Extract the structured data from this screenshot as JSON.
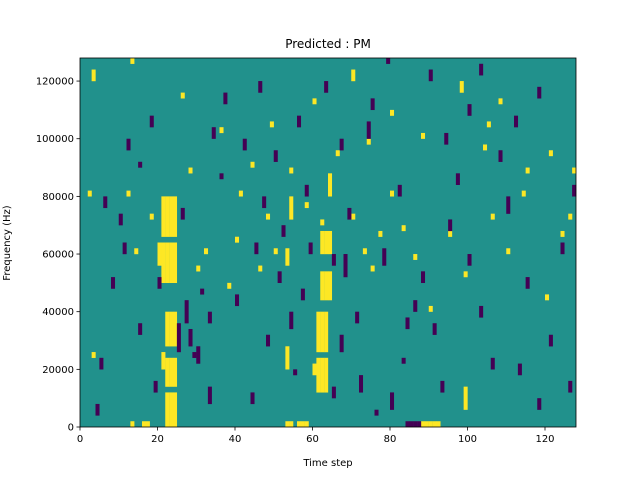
{
  "chart_data": {
    "type": "heatmap",
    "title": "Predicted : PM",
    "xlabel": "Time step",
    "ylabel": "Frequency (Hz)",
    "xlim": [
      0,
      128
    ],
    "ylim": [
      0,
      128000
    ],
    "x_ticks": [
      0,
      20,
      40,
      60,
      80,
      100,
      120
    ],
    "y_ticks": [
      0,
      20000,
      40000,
      60000,
      80000,
      100000,
      120000
    ],
    "x_tick_labels": [
      "0",
      "20",
      "40",
      "60",
      "80",
      "100",
      "120"
    ],
    "y_tick_labels": [
      "0",
      "20000",
      "40000",
      "60000",
      "80000",
      "100000",
      "120000"
    ],
    "grid": false,
    "n_time_steps": 128,
    "n_freq_bins": 64,
    "bin_hz": 2000,
    "colors": {
      "background": "#21918c",
      "low": "#440154",
      "high": "#fde725"
    },
    "background_value": 0,
    "value_levels": {
      "low": -1,
      "background": 0,
      "high": 1
    },
    "high_cells": [
      [
        22,
        0,
        6
      ],
      [
        23,
        0,
        6
      ],
      [
        24,
        0,
        6
      ],
      [
        16,
        0,
        1
      ],
      [
        17,
        0,
        1
      ],
      [
        13,
        0,
        1
      ],
      [
        22,
        7,
        12
      ],
      [
        23,
        7,
        12
      ],
      [
        24,
        7,
        12
      ],
      [
        21,
        10,
        13
      ],
      [
        22,
        14,
        20
      ],
      [
        23,
        14,
        20
      ],
      [
        24,
        14,
        20
      ],
      [
        21,
        25,
        32
      ],
      [
        22,
        25,
        32
      ],
      [
        23,
        25,
        32
      ],
      [
        24,
        25,
        32
      ],
      [
        20,
        28,
        32
      ],
      [
        21,
        33,
        40
      ],
      [
        22,
        33,
        40
      ],
      [
        23,
        33,
        40
      ],
      [
        24,
        33,
        40
      ],
      [
        61,
        6,
        12
      ],
      [
        62,
        6,
        12
      ],
      [
        63,
        6,
        12
      ],
      [
        60,
        9,
        11
      ],
      [
        61,
        13,
        20
      ],
      [
        62,
        13,
        20
      ],
      [
        63,
        13,
        20
      ],
      [
        62,
        22,
        27
      ],
      [
        63,
        22,
        27
      ],
      [
        64,
        22,
        27
      ],
      [
        62,
        30,
        34
      ],
      [
        63,
        30,
        34
      ],
      [
        64,
        30,
        34
      ],
      [
        62,
        35,
        36
      ],
      [
        53,
        0,
        1
      ],
      [
        54,
        0,
        1
      ],
      [
        56,
        0,
        1
      ],
      [
        57,
        0,
        1
      ],
      [
        58,
        0,
        1
      ],
      [
        88,
        0,
        1
      ],
      [
        89,
        0,
        1
      ],
      [
        90,
        0,
        1
      ],
      [
        91,
        0,
        1
      ],
      [
        92,
        0,
        1
      ],
      [
        53,
        10,
        14
      ],
      [
        53,
        28,
        31
      ],
      [
        54,
        36,
        40
      ],
      [
        64,
        40,
        44
      ],
      [
        2,
        40,
        41
      ],
      [
        3,
        12,
        13
      ],
      [
        12,
        40,
        41
      ],
      [
        14,
        30,
        31
      ],
      [
        18,
        36,
        37
      ],
      [
        30,
        27,
        28
      ],
      [
        32,
        30,
        31
      ],
      [
        38,
        24,
        25
      ],
      [
        40,
        32,
        33
      ],
      [
        41,
        40,
        41
      ],
      [
        46,
        27,
        28
      ],
      [
        48,
        36,
        37
      ],
      [
        50,
        30,
        31
      ],
      [
        58,
        38,
        39
      ],
      [
        70,
        36,
        37
      ],
      [
        73,
        30,
        31
      ],
      [
        75,
        27,
        28
      ],
      [
        77,
        33,
        34
      ],
      [
        80,
        40,
        41
      ],
      [
        83,
        34,
        35
      ],
      [
        86,
        29,
        30
      ],
      [
        90,
        20,
        21
      ],
      [
        95,
        33,
        34
      ],
      [
        99,
        3,
        7
      ],
      [
        99,
        26,
        27
      ],
      [
        104,
        48,
        49
      ],
      [
        106,
        36,
        37
      ],
      [
        110,
        30,
        31
      ],
      [
        114,
        40,
        41
      ],
      [
        120,
        22,
        23
      ],
      [
        124,
        33,
        34
      ],
      [
        126,
        36,
        37
      ],
      [
        3,
        60,
        62
      ],
      [
        13,
        63,
        64
      ],
      [
        26,
        57,
        58
      ],
      [
        28,
        44,
        45
      ],
      [
        36,
        51,
        52
      ],
      [
        44,
        45,
        46
      ],
      [
        49,
        52,
        53
      ],
      [
        54,
        44,
        45
      ],
      [
        60,
        56,
        57
      ],
      [
        66,
        47,
        48
      ],
      [
        70,
        60,
        62
      ],
      [
        74,
        49,
        50
      ],
      [
        80,
        54,
        55
      ],
      [
        88,
        50,
        51
      ],
      [
        98,
        58,
        60
      ],
      [
        105,
        52,
        53
      ],
      [
        108,
        56,
        57
      ],
      [
        115,
        44,
        45
      ],
      [
        121,
        47,
        48
      ],
      [
        127,
        44,
        45
      ]
    ],
    "low_cells": [
      [
        20,
        24,
        26
      ],
      [
        25,
        13,
        18
      ],
      [
        27,
        18,
        22
      ],
      [
        28,
        14,
        17
      ],
      [
        30,
        11,
        14
      ],
      [
        31,
        23,
        24
      ],
      [
        29,
        12,
        13
      ],
      [
        26,
        36,
        38
      ],
      [
        33,
        4,
        7
      ],
      [
        33,
        18,
        20
      ],
      [
        36,
        43,
        44
      ],
      [
        40,
        21,
        23
      ],
      [
        44,
        4,
        6
      ],
      [
        47,
        38,
        40
      ],
      [
        51,
        25,
        27
      ],
      [
        52,
        33,
        35
      ],
      [
        54,
        17,
        20
      ],
      [
        55,
        9,
        10
      ],
      [
        57,
        22,
        24
      ],
      [
        58,
        40,
        42
      ],
      [
        65,
        5,
        7
      ],
      [
        67,
        13,
        16
      ],
      [
        68,
        26,
        30
      ],
      [
        69,
        36,
        38
      ],
      [
        71,
        18,
        20
      ],
      [
        72,
        6,
        9
      ],
      [
        74,
        50,
        53
      ],
      [
        76,
        2,
        3
      ],
      [
        78,
        28,
        31
      ],
      [
        80,
        3,
        6
      ],
      [
        82,
        40,
        42
      ],
      [
        83,
        11,
        12
      ],
      [
        84,
        0,
        1
      ],
      [
        85,
        0,
        1
      ],
      [
        86,
        0,
        1
      ],
      [
        87,
        0,
        1
      ],
      [
        84,
        17,
        19
      ],
      [
        86,
        20,
        22
      ],
      [
        88,
        25,
        27
      ],
      [
        91,
        16,
        18
      ],
      [
        93,
        6,
        8
      ],
      [
        95,
        34,
        36
      ],
      [
        97,
        42,
        44
      ],
      [
        100,
        28,
        30
      ],
      [
        103,
        19,
        21
      ],
      [
        106,
        10,
        12
      ],
      [
        108,
        46,
        48
      ],
      [
        110,
        37,
        40
      ],
      [
        113,
        9,
        11
      ],
      [
        115,
        24,
        26
      ],
      [
        118,
        3,
        5
      ],
      [
        121,
        14,
        16
      ],
      [
        124,
        30,
        32
      ],
      [
        126,
        6,
        8
      ],
      [
        127,
        40,
        42
      ],
      [
        6,
        38,
        40
      ],
      [
        10,
        35,
        37
      ],
      [
        12,
        48,
        50
      ],
      [
        15,
        45,
        46
      ],
      [
        18,
        52,
        54
      ],
      [
        34,
        50,
        52
      ],
      [
        37,
        56,
        58
      ],
      [
        42,
        48,
        50
      ],
      [
        46,
        58,
        60
      ],
      [
        50,
        46,
        48
      ],
      [
        56,
        52,
        54
      ],
      [
        63,
        58,
        60
      ],
      [
        67,
        48,
        50
      ],
      [
        75,
        55,
        57
      ],
      [
        79,
        63,
        64
      ],
      [
        90,
        60,
        62
      ],
      [
        94,
        49,
        51
      ],
      [
        100,
        54,
        56
      ],
      [
        103,
        61,
        63
      ],
      [
        112,
        52,
        54
      ],
      [
        118,
        57,
        59
      ],
      [
        5,
        10,
        12
      ],
      [
        8,
        24,
        26
      ],
      [
        4,
        2,
        4
      ],
      [
        11,
        30,
        32
      ],
      [
        15,
        16,
        18
      ],
      [
        19,
        6,
        8
      ],
      [
        45,
        30,
        32
      ],
      [
        48,
        14,
        16
      ],
      [
        59,
        30,
        32
      ],
      [
        65,
        28,
        30
      ]
    ]
  }
}
